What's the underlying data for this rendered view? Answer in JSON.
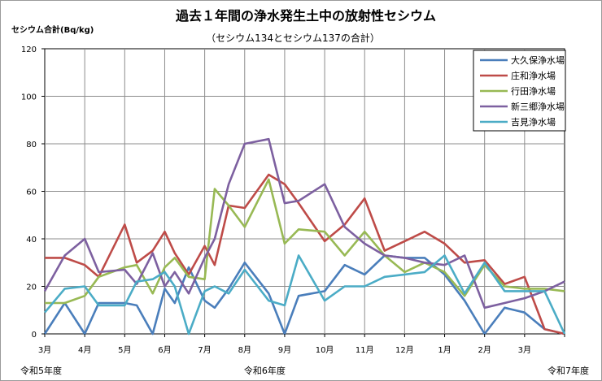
{
  "chart_data": {
    "type": "line",
    "title": "過去１年間の浄水発生土中の放射性セシウム",
    "subtitle": "（セシウム134とセシウム137の合計）",
    "ylabel": "セシウム合計(Bq/kg)",
    "ylim": [
      0,
      120
    ],
    "yticks": [
      "0",
      "20",
      "40",
      "60",
      "80",
      "100",
      "120"
    ],
    "month_labels": [
      "3月",
      "4月",
      "5月",
      "6月",
      "7月",
      "8月",
      "9月",
      "10月",
      "11月",
      "12月",
      "1月",
      "2月",
      "3月"
    ],
    "era_labels": [
      {
        "text": "令和5年度",
        "month_index": 0
      },
      {
        "text": "令和6年度",
        "month_index": 5.5
      },
      {
        "text": "令和7年度",
        "month_index": 13
      }
    ],
    "x_range": [
      0,
      13
    ],
    "grid": true,
    "legend_position": "top-right",
    "series": [
      {
        "name": "大久保浄水場",
        "color": "#4a7ebb",
        "x": [
          0,
          0.5,
          1,
          1.35,
          2,
          2.3,
          2.7,
          3,
          3.25,
          3.6,
          4,
          4.25,
          4.6,
          5,
          5.6,
          6,
          6.35,
          7,
          7.5,
          8,
          8.5,
          9,
          9.5,
          10,
          10.5,
          11,
          11.5,
          12,
          12.5,
          13
        ],
        "y": [
          0,
          13,
          0,
          13,
          13,
          12,
          0,
          19,
          13,
          28,
          14,
          11,
          19,
          30,
          17,
          0,
          16,
          18,
          29,
          25,
          33,
          32,
          32,
          25,
          14,
          0,
          11,
          9,
          2,
          0
        ]
      },
      {
        "name": "庄和浄水場",
        "color": "#be4b48",
        "x": [
          0,
          0.5,
          1,
          1.35,
          2,
          2.3,
          2.7,
          3,
          3.25,
          3.6,
          4,
          4.25,
          4.6,
          5,
          5.6,
          6,
          6.35,
          7,
          7.5,
          8,
          8.5,
          9,
          9.5,
          10,
          10.5,
          11,
          11.5,
          12,
          12.5,
          13
        ],
        "y": [
          32,
          32,
          29,
          24,
          46,
          30,
          35,
          43,
          34,
          25,
          37,
          29,
          54,
          53,
          67,
          63,
          55,
          39,
          46,
          57,
          35,
          39,
          43,
          38,
          30,
          31,
          21,
          24,
          2,
          0
        ]
      },
      {
        "name": "行田浄水場",
        "color": "#98b954",
        "x": [
          0,
          0.5,
          1,
          1.35,
          2,
          2.3,
          2.7,
          3,
          3.25,
          3.6,
          4,
          4.25,
          4.6,
          5,
          5.6,
          6,
          6.35,
          7,
          7.5,
          8,
          8.5,
          9,
          9.5,
          10,
          10.5,
          11,
          11.5,
          12,
          12.5,
          13
        ],
        "y": [
          13,
          13,
          16,
          24,
          28,
          29,
          17,
          28,
          32,
          24,
          23,
          61,
          54,
          45,
          65,
          38,
          44,
          43,
          33,
          43,
          33,
          26,
          30,
          26,
          16,
          29,
          20,
          19,
          19,
          18
        ]
      },
      {
        "name": "新三郷浄水場",
        "color": "#7d60a0",
        "x": [
          0,
          0.5,
          1,
          1.35,
          2,
          2.3,
          2.7,
          3,
          3.25,
          3.6,
          4,
          4.25,
          4.6,
          5,
          5.6,
          6,
          6.35,
          7,
          7.5,
          8,
          8.5,
          9,
          9.5,
          10,
          10.5,
          11,
          11.5,
          12,
          12.5,
          13
        ],
        "y": [
          18,
          33,
          40,
          26,
          27,
          21,
          34,
          20,
          26,
          17,
          32,
          40,
          63,
          80,
          82,
          55,
          56,
          63,
          45,
          38,
          33,
          32,
          30,
          29,
          33,
          11,
          13,
          15,
          18,
          22
        ]
      },
      {
        "name": "吉見浄水場",
        "color": "#4bacc6",
        "x": [
          0,
          0.5,
          1,
          1.35,
          2,
          2.3,
          2.7,
          3,
          3.25,
          3.6,
          4,
          4.25,
          4.6,
          5,
          5.6,
          6,
          6.35,
          7,
          7.5,
          8,
          8.5,
          9,
          9.5,
          10,
          10.5,
          11,
          11.5,
          12,
          12.5,
          13
        ],
        "y": [
          9,
          19,
          20,
          12,
          12,
          22,
          23,
          26,
          20,
          0,
          18,
          20,
          17,
          27,
          14,
          12,
          33,
          14,
          20,
          20,
          24,
          25,
          26,
          33,
          17,
          30,
          18,
          18,
          18,
          0
        ]
      }
    ]
  }
}
